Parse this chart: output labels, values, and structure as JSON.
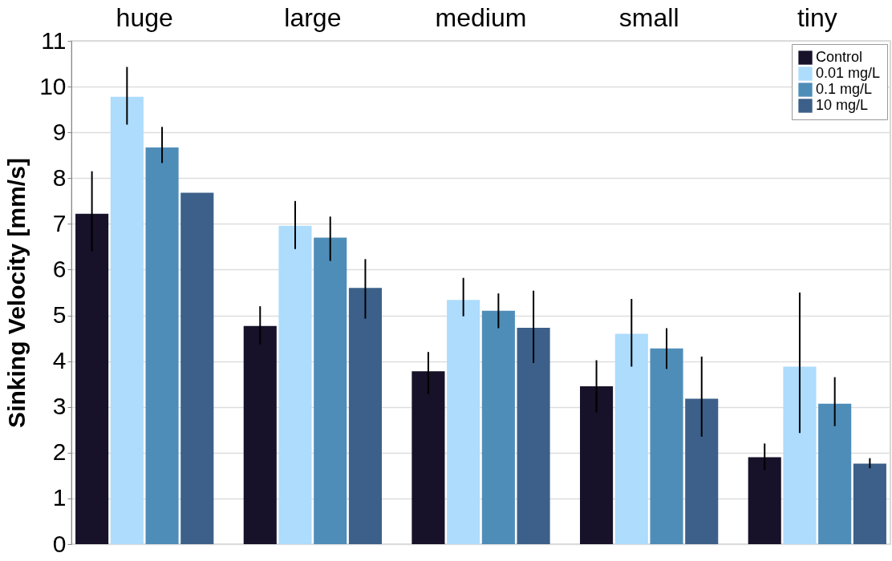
{
  "chart_data": {
    "type": "bar",
    "ylabel": "Sinking Velocity [mm/s]",
    "categories": [
      "huge",
      "large",
      "medium",
      "small",
      "tiny"
    ],
    "ylim": [
      0,
      11
    ],
    "yticks": [
      0,
      1,
      2,
      3,
      4,
      5,
      6,
      7,
      8,
      9,
      10,
      11
    ],
    "grid": "y",
    "legend": "top right",
    "series": [
      {
        "name": "Control",
        "color": "#171129",
        "values": [
          7.22,
          4.77,
          3.78,
          3.45,
          1.9
        ],
        "errors": [
          [
            6.4,
            8.15
          ],
          [
            4.37,
            5.2
          ],
          [
            3.28,
            4.2
          ],
          [
            2.88,
            4.02
          ],
          [
            1.62,
            2.2
          ]
        ]
      },
      {
        "name": "0.01 mg/L",
        "color": "#addcfc",
        "values": [
          9.78,
          6.96,
          5.34,
          4.6,
          3.88
        ],
        "errors": [
          [
            9.17,
            10.43
          ],
          [
            6.45,
            7.5
          ],
          [
            4.98,
            5.82
          ],
          [
            3.88,
            5.36
          ],
          [
            2.43,
            5.5
          ]
        ]
      },
      {
        "name": "0.1 mg/L",
        "color": "#4f8db9",
        "values": [
          8.67,
          6.7,
          5.1,
          4.28,
          3.07
        ],
        "errors": [
          [
            8.33,
            9.12
          ],
          [
            6.19,
            7.16
          ],
          [
            4.72,
            5.48
          ],
          [
            3.83,
            4.72
          ],
          [
            2.58,
            3.65
          ]
        ]
      },
      {
        "name": "10 mg/L",
        "color": "#3c6089",
        "values": [
          7.68,
          5.6,
          4.73,
          3.18,
          1.76
        ],
        "errors": [
          null,
          [
            4.93,
            6.23
          ],
          [
            3.96,
            5.54
          ],
          [
            2.35,
            4.1
          ],
          [
            1.66,
            1.88
          ]
        ]
      }
    ]
  }
}
